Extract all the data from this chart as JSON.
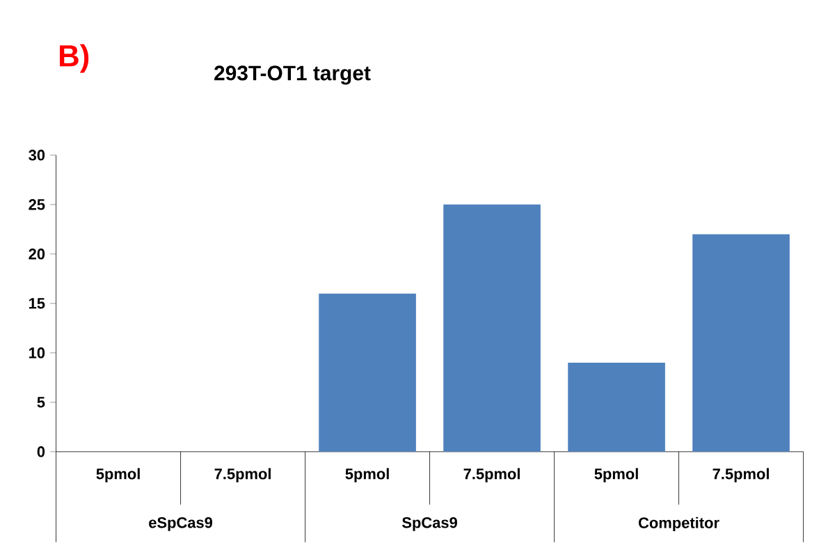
{
  "chart_data": {
    "type": "bar",
    "title": "293T-OT1 target",
    "categories": [
      "5pmol",
      "7.5pmol",
      "5pmol",
      "7.5pmol",
      "5pmol",
      "7.5pmol"
    ],
    "values": [
      0,
      0,
      16,
      25,
      9,
      22
    ],
    "color": "#4f81bd",
    "ylim": [
      0,
      30
    ],
    "yticks": [
      0,
      5,
      10,
      15,
      20,
      25,
      30
    ],
    "annotations": [
      "B)",
      "eSpCas9",
      "SpCas9",
      "Competitor"
    ]
  }
}
